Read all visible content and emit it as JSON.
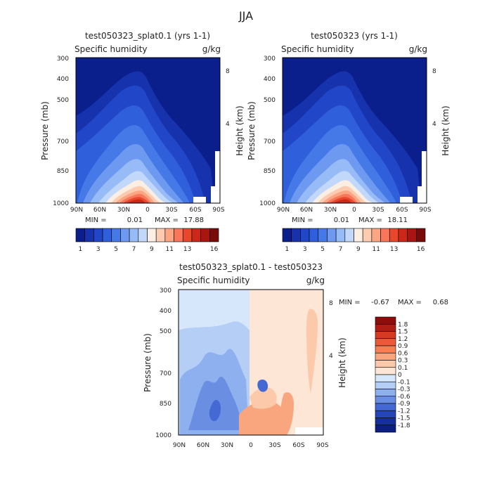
{
  "page_title": "JJA",
  "chart_data": [
    {
      "type": "contour",
      "title": "test050323_splat0.1 (yrs 1-1)",
      "variable_label": "Specific humidity",
      "units_label": "g/kg",
      "ylabel": "Pressure (mb)",
      "ylabel_right": "Height (km)",
      "xticks": [
        "90N",
        "60N",
        "30N",
        "0",
        "30S",
        "60S",
        "90S"
      ],
      "yticks": [
        "300",
        "400",
        "500",
        "700",
        "850",
        "1000"
      ],
      "yticks_right": [
        "8",
        "4"
      ],
      "min_label": "MIN =",
      "min": "0.01",
      "max_label": "MAX =",
      "max": "17.88",
      "colorbar_labels": [
        "1",
        "3",
        "5",
        "7",
        "9",
        "11",
        "13",
        "16"
      ],
      "colors": [
        "#0b1f8c",
        "#1633ad",
        "#2246c8",
        "#305fdb",
        "#4679e8",
        "#6d9af0",
        "#97bbf6",
        "#c2d8fb",
        "#fbeee3",
        "#fdccb0",
        "#fba582",
        "#f8775a",
        "#e8472c",
        "#cc2718",
        "#a91510",
        "#7a0a08"
      ]
    },
    {
      "type": "contour",
      "title": "test050323 (yrs 1-1)",
      "variable_label": "Specific humidity",
      "units_label": "g/kg",
      "ylabel": "Pressure (mb)",
      "ylabel_right": "Height (km)",
      "xticks": [
        "90N",
        "60N",
        "30N",
        "0",
        "30S",
        "60S",
        "90S"
      ],
      "yticks": [
        "300",
        "400",
        "500",
        "700",
        "850",
        "1000"
      ],
      "yticks_right": [
        "8",
        "4"
      ],
      "min_label": "MIN =",
      "min": "0.01",
      "max_label": "MAX =",
      "max": "18.11",
      "colorbar_labels": [
        "1",
        "3",
        "5",
        "7",
        "9",
        "11",
        "13",
        "16"
      ],
      "colors": [
        "#0b1f8c",
        "#1633ad",
        "#2246c8",
        "#305fdb",
        "#4679e8",
        "#6d9af0",
        "#97bbf6",
        "#c2d8fb",
        "#fbeee3",
        "#fdccb0",
        "#fba582",
        "#f8775a",
        "#e8472c",
        "#cc2718",
        "#a91510",
        "#7a0a08"
      ]
    },
    {
      "type": "contour",
      "title": "test050323_splat0.1 - test050323",
      "variable_label": "Specific humidity",
      "units_label": "g/kg",
      "ylabel": "Pressure (mb)",
      "ylabel_right": "Height (km)",
      "xticks": [
        "90N",
        "60N",
        "30N",
        "0",
        "30S",
        "60S",
        "90S"
      ],
      "yticks": [
        "300",
        "400",
        "500",
        "700",
        "850",
        "1000"
      ],
      "yticks_right": [
        "8",
        "4"
      ],
      "min_label": "MIN =",
      "min": "-0.67",
      "max_label": "MAX =",
      "max": "0.68",
      "colorbar_labels": [
        "1.8",
        "1.5",
        "1.2",
        "0.9",
        "0.6",
        "0.3",
        "0.1",
        "0",
        "-0.1",
        "-0.3",
        "-0.6",
        "-0.9",
        "-1.2",
        "-1.5",
        "-1.8"
      ],
      "colors": [
        "#8c0d0b",
        "#b11d14",
        "#d63a22",
        "#ea5a36",
        "#f47f57",
        "#f9a67f",
        "#fcc9ab",
        "#fde6d6",
        "#d6e6fb",
        "#b4cef6",
        "#8fb0ee",
        "#6a8fe2",
        "#4468d4",
        "#2546b8",
        "#15309a",
        "#0a1f80"
      ]
    }
  ]
}
